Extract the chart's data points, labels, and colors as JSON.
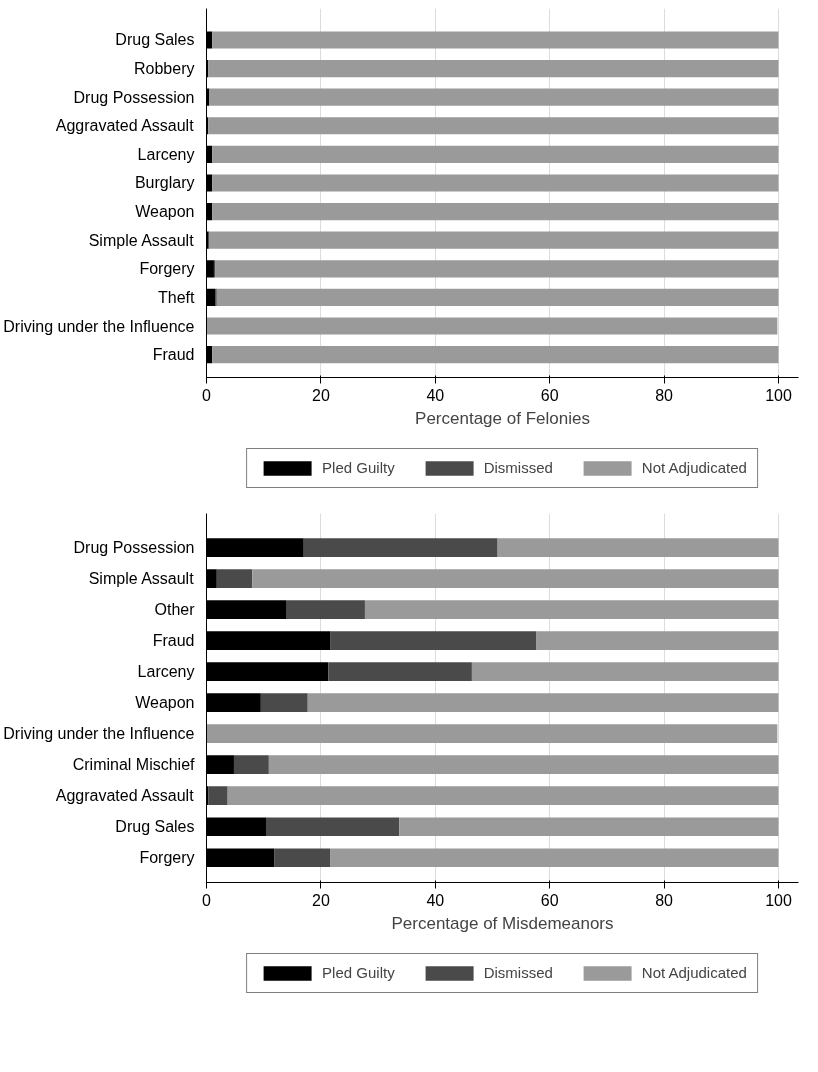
{
  "chart_data": [
    {
      "type": "bar",
      "orientation": "horizontal",
      "stacked": true,
      "xlabel": "Percentage of Felonies",
      "categories": [
        "Drug Sales",
        "Robbery",
        "Drug Possession",
        "Aggravated Assault",
        "Larceny",
        "Burglary",
        "Weapon",
        "Simple Assault",
        "Forgery",
        "Theft",
        "Driving under the Influence",
        "Fraud"
      ],
      "series": [
        {
          "name": "Pled Guilty",
          "color": "#000000",
          "values": [
            1.0,
            0.3,
            0.5,
            0.3,
            1.0,
            1.0,
            1.0,
            0.4,
            1.3,
            1.5,
            null,
            1.0
          ]
        },
        {
          "name": "Dismissed",
          "color": "#4a4a4a",
          "values": [
            0,
            0,
            0,
            0,
            0,
            0,
            0,
            0,
            0.2,
            0.3,
            0,
            0
          ]
        },
        {
          "name": "Not Adjudicated",
          "color": "#9a9a9a",
          "values": [
            99.0,
            99.7,
            99.5,
            99.7,
            99.0,
            99.0,
            99.0,
            99.6,
            98.5,
            98.2,
            99.8,
            99.0
          ]
        }
      ],
      "xlim": [
        0,
        103.5
      ],
      "xticks": [
        0,
        20,
        40,
        60,
        80,
        100
      ],
      "grid": "x",
      "legend": "bottom"
    },
    {
      "type": "bar",
      "orientation": "horizontal",
      "stacked": true,
      "xlabel": "Percentage of Misdemeanors",
      "categories": [
        "Drug Possession",
        "Simple Assault",
        "Other",
        "Fraud",
        "Larceny",
        "Weapon",
        "Driving under the Influence",
        "Criminal Mischief",
        "Aggravated Assault",
        "Drug Sales",
        "Forgery"
      ],
      "series": [
        {
          "name": "Pled Guilty",
          "color": "#000000",
          "values": [
            17.0,
            1.8,
            13.9,
            21.7,
            21.3,
            9.5,
            null,
            4.8,
            0.3,
            10.4,
            11.9
          ]
        },
        {
          "name": "Dismissed",
          "color": "#4a4a4a",
          "values": [
            33.9,
            6.2,
            13.8,
            36.0,
            25.1,
            8.2,
            0,
            6.1,
            3.4,
            23.3,
            9.7
          ]
        },
        {
          "name": "Not Adjudicated",
          "color": "#9a9a9a",
          "values": [
            49.1,
            92.0,
            72.3,
            42.3,
            53.6,
            82.3,
            99.8,
            89.1,
            96.3,
            66.3,
            78.4
          ]
        }
      ],
      "xlim": [
        0,
        103.5
      ],
      "xticks": [
        0,
        20,
        40,
        60,
        80,
        100
      ],
      "grid": "x",
      "legend": "bottom"
    }
  ]
}
